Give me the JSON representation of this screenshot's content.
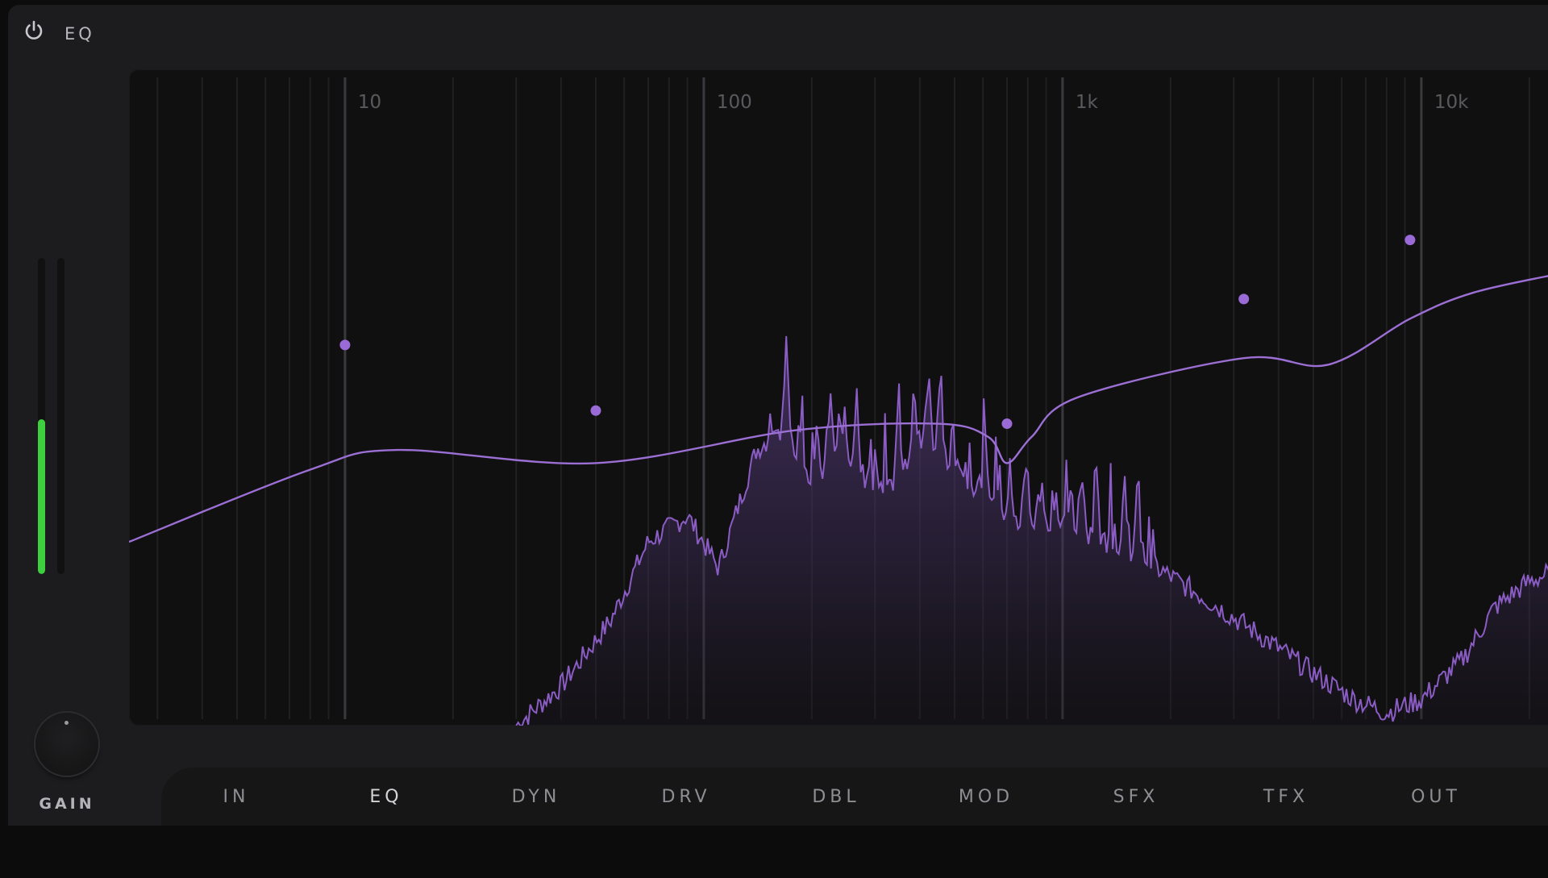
{
  "header": {
    "title": "EQ",
    "power_icon": "power-icon"
  },
  "colors": {
    "accent": "#9a6ad6",
    "curve": "#9b6fd3",
    "spectrum_stroke": "#8a5cc4",
    "meter": "#3ecf3e",
    "background": "#1c1c1e",
    "graph_background": "#101011"
  },
  "eq_graph": {
    "scale": "log",
    "freq_range_hz": [
      2.5,
      25000
    ],
    "frequency_labels": [
      {
        "text": "10",
        "hz": 10
      },
      {
        "text": "100",
        "hz": 100
      },
      {
        "text": "1k",
        "hz": 1000
      },
      {
        "text": "10k",
        "hz": 10000
      }
    ],
    "bands": [
      {
        "id": 1,
        "freq_hz": 10,
        "gain_level": 0.58
      },
      {
        "id": 2,
        "freq_hz": 50,
        "gain_level": 0.48
      },
      {
        "id": 3,
        "freq_hz": 700,
        "gain_level": 0.46
      },
      {
        "id": 4,
        "freq_hz": 3200,
        "gain_level": 0.65
      },
      {
        "id": 5,
        "freq_hz": 9300,
        "gain_level": 0.74
      }
    ]
  },
  "input_meter": {
    "left_level": 0.49,
    "right_level": 0.0
  },
  "gain": {
    "label": "GAIN"
  },
  "nav": {
    "tabs": [
      {
        "label": "IN",
        "active": false
      },
      {
        "label": "EQ",
        "active": true
      },
      {
        "label": "DYN",
        "active": false
      },
      {
        "label": "DRV",
        "active": false
      },
      {
        "label": "DBL",
        "active": false
      },
      {
        "label": "MOD",
        "active": false
      },
      {
        "label": "SFX",
        "active": false
      },
      {
        "label": "TFX",
        "active": false
      },
      {
        "label": "OUT",
        "active": false
      }
    ]
  }
}
